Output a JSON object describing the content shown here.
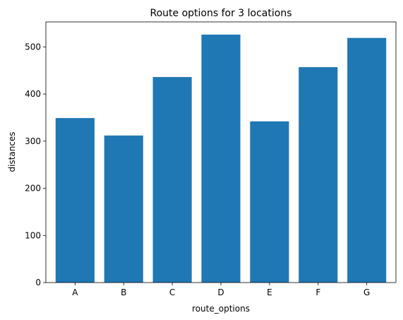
{
  "chart_data": {
    "type": "bar",
    "title": "Route options for 3 locations",
    "xlabel": "route_options",
    "ylabel": "distances",
    "categories": [
      "A",
      "B",
      "C",
      "D",
      "E",
      "F",
      "G"
    ],
    "values": [
      349,
      312,
      436,
      526,
      342,
      457,
      519
    ],
    "ylim": [
      0,
      553
    ],
    "yticks": [
      0,
      100,
      200,
      300,
      400,
      500
    ],
    "grid": false,
    "bar_color": "#1f77b4"
  }
}
